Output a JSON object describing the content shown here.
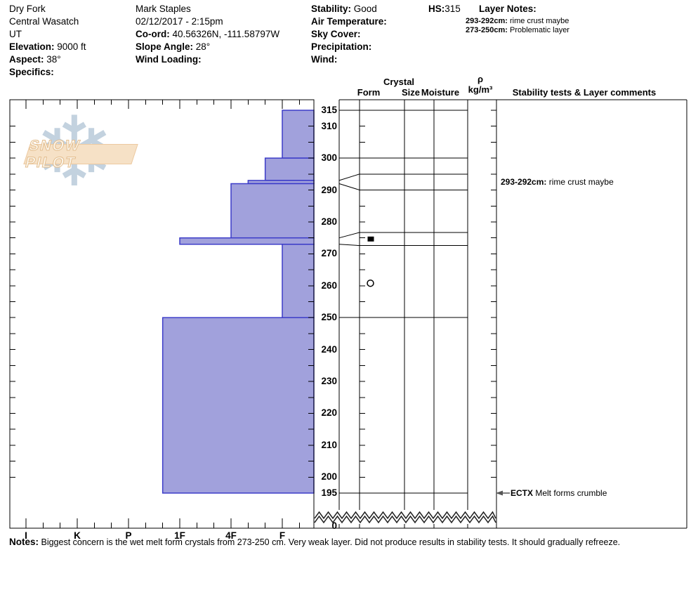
{
  "header": {
    "site": {
      "line1": "Dry Fork",
      "line2": "Central Wasatch",
      "line3": "UT",
      "elevation_label": "Elevation:",
      "elevation_value": " 9000 ft",
      "aspect_label": "Aspect:",
      "aspect_value": " 38°",
      "specifics_label": "Specifics:",
      "specifics_value": ""
    },
    "observer": {
      "name": "Mark Staples",
      "datetime": "02/12/2017 - 2:15pm",
      "coord_label": "Co-ord:",
      "coord_value": " 40.56326N, -111.58797W",
      "slope_label": "Slope Angle:",
      "slope_value": " 28°",
      "wind_loading_label": "Wind Loading:",
      "wind_loading_value": ""
    },
    "conditions": {
      "stability_label": "Stability:",
      "stability_value": " Good",
      "air_temp_label": "Air Temperature:",
      "air_temp_value": "",
      "sky_label": "Sky Cover:",
      "sky_value": "",
      "precip_label": "Precipitation:",
      "precip_value": "",
      "wind_label": "Wind:",
      "wind_value": ""
    },
    "hs_label": "HS:",
    "hs_value": "315",
    "layer_notes_label": "Layer Notes:",
    "layer_notes": [
      {
        "range": "293-292cm:",
        "text": " rime crust maybe"
      },
      {
        "range": "273-250cm:",
        "text": " Problematic layer"
      }
    ]
  },
  "watermark": {
    "text": "SNOW PILOT",
    "flake_glyph": "❄"
  },
  "table_headers": {
    "crystal": "Crystal",
    "form": "Form",
    "size": "Size",
    "moisture": "Moisture",
    "rho": "ρ",
    "rho_units": "kg/m³",
    "comments": "Stability tests & Layer comments"
  },
  "chart_data": {
    "type": "bar",
    "subtype": "snow-hardness-profile",
    "depth_unit": "cm",
    "title": "",
    "xlabel": "hand hardness",
    "ylabel": "depth (cm)",
    "hardness_categories": [
      "I",
      "K",
      "P",
      "1F",
      "4F",
      "F"
    ],
    "depth_labels": [
      315,
      310,
      300,
      290,
      280,
      270,
      260,
      250,
      240,
      230,
      220,
      210,
      200,
      195
    ],
    "surface_datum_label": "0",
    "total_snow_height_cm": 315,
    "depth_range_shown": [
      315,
      195
    ],
    "layers": [
      {
        "top_cm": 315,
        "bottom_cm": 300,
        "hardness": "F"
      },
      {
        "top_cm": 300,
        "bottom_cm": 293,
        "hardness": "F+"
      },
      {
        "top_cm": 293,
        "bottom_cm": 292,
        "hardness": "4F-"
      },
      {
        "top_cm": 292,
        "bottom_cm": 275,
        "hardness": "4F"
      },
      {
        "top_cm": 275,
        "bottom_cm": 273,
        "hardness": "1F"
      },
      {
        "top_cm": 273,
        "bottom_cm": 250,
        "hardness": "F"
      },
      {
        "top_cm": 250,
        "bottom_cm": 195,
        "hardness": "1F+"
      }
    ],
    "expanded_thin_layers": [
      {
        "true_top_cm": 293,
        "true_bottom_cm": 292,
        "display_top_cm": 295,
        "display_bottom_cm": 290
      },
      {
        "true_top_cm": 275,
        "true_bottom_cm": 273,
        "display_top_cm": 276.7,
        "display_bottom_cm": 272.6
      }
    ],
    "grain_symbols": [
      {
        "depth_cm": 274,
        "glyph": "filled-rect",
        "meaning": "rime/ice crust"
      },
      {
        "depth_cm": 260.8,
        "glyph": "open-circle",
        "meaning": "melt forms"
      }
    ],
    "layer_comments": [
      {
        "depth_cm": 292.5,
        "bold": "293-292cm:",
        "text": " rime crust maybe",
        "arrow": false
      },
      {
        "depth_cm": 195,
        "bold": "ECTX",
        "text": "  Melt forms crumble",
        "arrow": true
      }
    ],
    "colors": {
      "bar_fill": "#a1a1dc",
      "bar_stroke": "#3c3cc8",
      "line": "#000000",
      "arrow": "#555555"
    }
  },
  "notes": {
    "label": "Notes:",
    "text": " Biggest concern is the wet melt form crystals from 273-250 cm. Very weak layer. Did not produce results in stability tests. It should gradually refreeze."
  }
}
